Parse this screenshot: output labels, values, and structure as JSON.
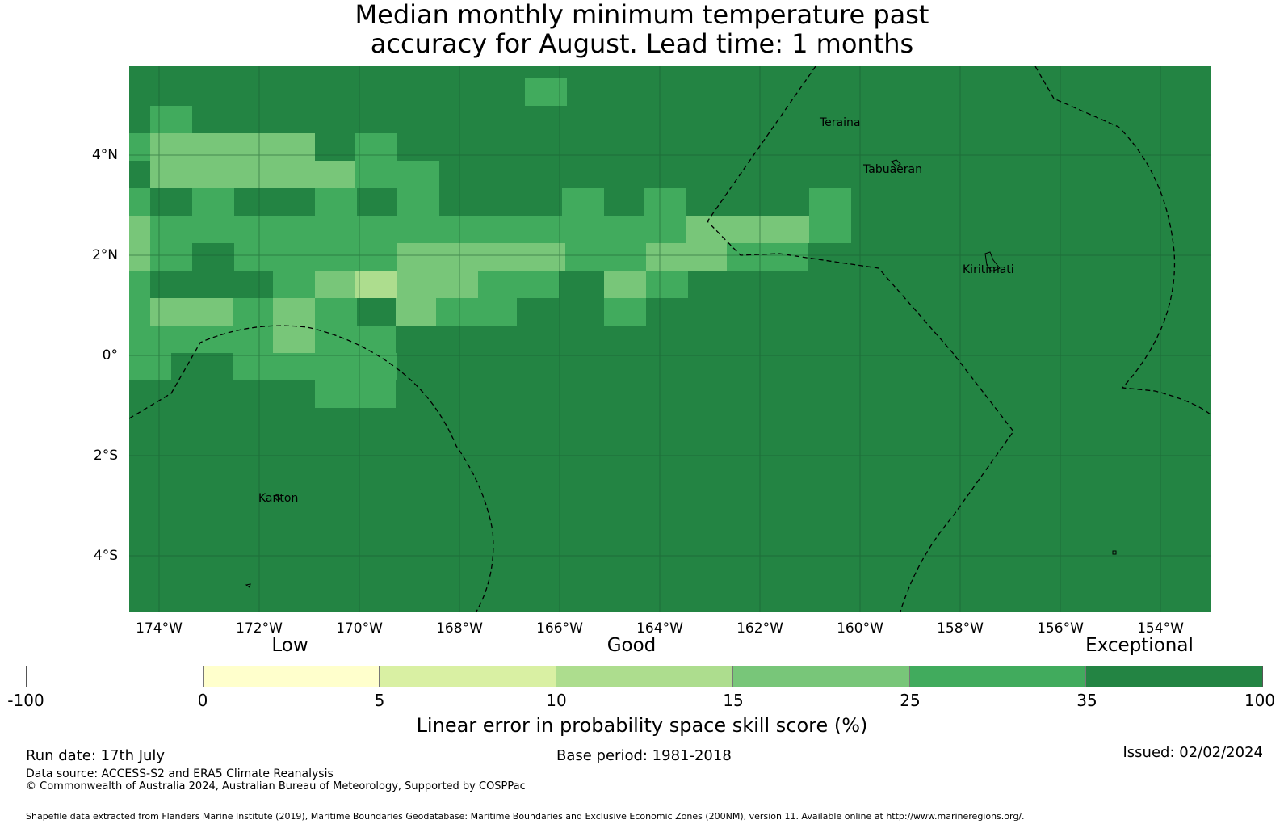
{
  "title": {
    "line1": "Median monthly minimum temperature past",
    "line2": "accuracy for August. Lead time: 1 months"
  },
  "map": {
    "x_ticks": [
      "174°W",
      "172°W",
      "170°W",
      "168°W",
      "166°W",
      "164°W",
      "162°W",
      "160°W",
      "158°W",
      "156°W",
      "154°W"
    ],
    "y_ticks": [
      "4°N",
      "2°N",
      "0°",
      "2°S",
      "4°S"
    ],
    "places": [
      "Teraina",
      "Tabuaeran",
      "Kiritimati",
      "Kanton"
    ],
    "boundary_style": "dashed maritime boundaries (200NM EEZ)"
  },
  "legend": {
    "categories": [
      "Low",
      "Good",
      "Exceptional"
    ],
    "ticks": [
      "-100",
      "0",
      "5",
      "10",
      "15",
      "25",
      "35",
      "100"
    ],
    "colors": [
      "#ffffff",
      "#ffffcc",
      "#d9f0a3",
      "#addd8e",
      "#78c679",
      "#41ab5d",
      "#238443"
    ],
    "label": "Linear error in probability space skill score (%)"
  },
  "footer": {
    "run_date": "Run date: 17th July",
    "base_period": "Base period: 1981-2018",
    "issued": "Issued: 02/02/2024",
    "data_source": "Data source: ACCESS-S2 and ERA5 Climate Reanalysis",
    "copyright": "© Commonwealth of Australia 2024, Australian Bureau of Meteorology, Supported by COSPPac",
    "shapefile": "Shapefile data extracted from Flanders Marine Institute (2019), Maritime Boundaries Geodatabase: Maritime Boundaries and Exclusive Economic Zones (200NM), version 11. Available online at http://www.marineregions.org/."
  }
}
